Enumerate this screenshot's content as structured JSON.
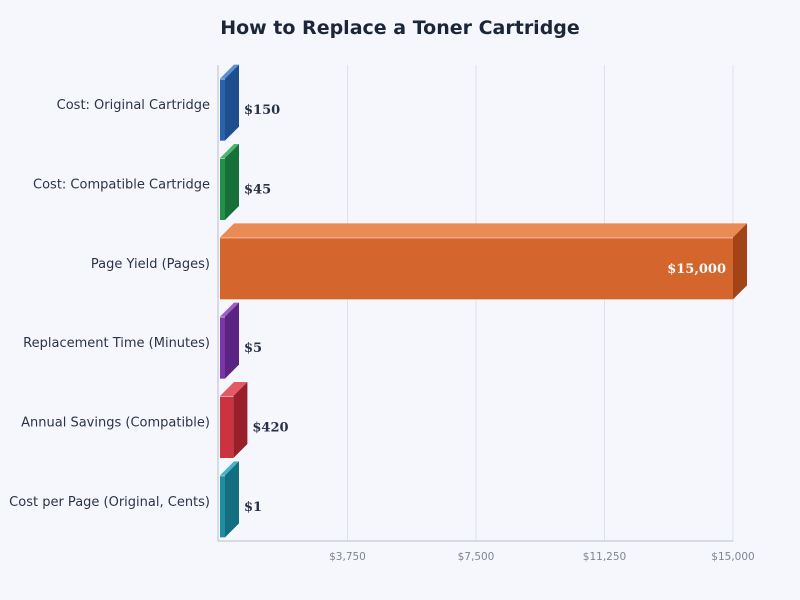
{
  "chart_data": {
    "type": "bar",
    "orientation": "horizontal",
    "title": "How to Replace a Toner Cartridge",
    "xlabel": "",
    "ylabel": "",
    "xlim": [
      0,
      15000
    ],
    "xticks": [
      3750,
      7500,
      11250,
      15000
    ],
    "xtick_labels": [
      "$3,750",
      "$7,500",
      "$11,250",
      "$15,000"
    ],
    "grid": true,
    "style": "3d",
    "categories": [
      "Cost: Original Cartridge",
      "Cost: Compatible Cartridge",
      "Page Yield (Pages)",
      "Replacement Time (Minutes)",
      "Annual Savings (Compatible)",
      "Cost per Page (Original, Cents)"
    ],
    "values": [
      150,
      45,
      15000,
      5,
      420,
      1
    ],
    "value_labels": [
      "$150",
      "$45",
      "$15,000",
      "$5",
      "$420",
      "$1"
    ],
    "colors": [
      "#2a62ad",
      "#23904a",
      "#d4652c",
      "#7a35a6",
      "#cc3340",
      "#1e8ea3"
    ],
    "side_colors": [
      "#1d4f8f",
      "#17703a",
      "#a34418",
      "#5b2482",
      "#991f2b",
      "#136e80"
    ],
    "top_colors": [
      "#5b8fd6",
      "#4cb86f",
      "#ea8a54",
      "#9c5cc6",
      "#e25a66",
      "#45b3c6"
    ]
  }
}
